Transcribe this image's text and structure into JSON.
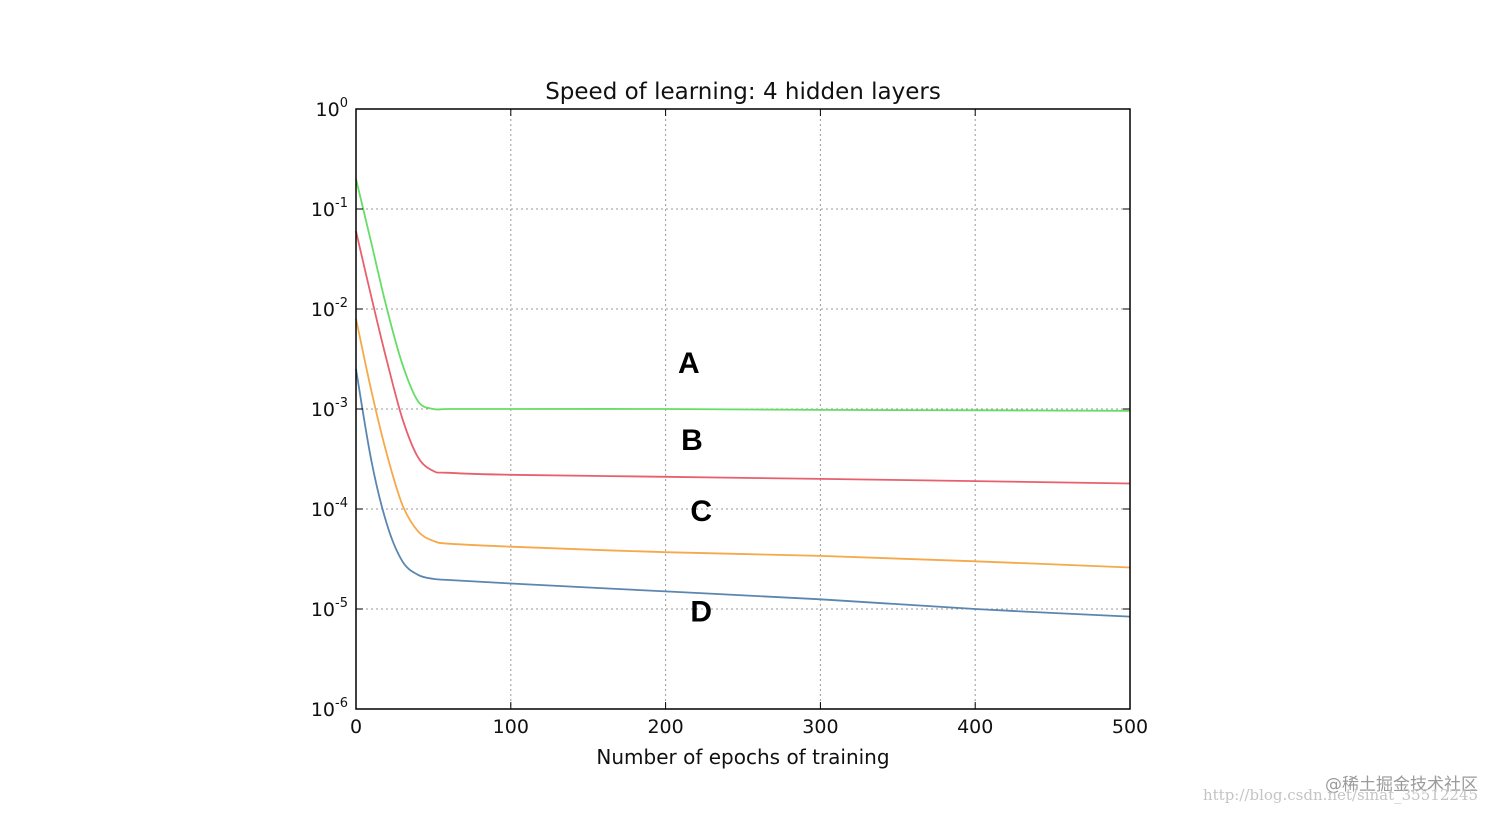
{
  "chart_data": {
    "type": "line",
    "title": "Speed of learning: 4 hidden layers",
    "xlabel": "Number of epochs of training",
    "ylabel": "",
    "xlim": [
      0,
      500
    ],
    "ylim": [
      1e-06,
      1
    ],
    "yscale": "log",
    "grid": true,
    "xticks": [
      "0",
      "100",
      "200",
      "300",
      "400",
      "500"
    ],
    "yticks": [
      {
        "base": "10",
        "exp": "0"
      },
      {
        "base": "10",
        "exp": "-1"
      },
      {
        "base": "10",
        "exp": "-2"
      },
      {
        "base": "10",
        "exp": "-3"
      },
      {
        "base": "10",
        "exp": "-4"
      },
      {
        "base": "10",
        "exp": "-5"
      },
      {
        "base": "10",
        "exp": "-6"
      }
    ],
    "colors": {
      "A": "#66dd66",
      "B": "#e8606c",
      "C": "#f5a94a",
      "D": "#5b86b0"
    },
    "series": [
      {
        "name": "A",
        "x": [
          0,
          10,
          20,
          30,
          40,
          50,
          60,
          100,
          200,
          300,
          400,
          500
        ],
        "y": [
          0.2,
          0.045,
          0.01,
          0.0028,
          0.0012,
          0.001,
          0.001,
          0.001,
          0.001,
          0.00098,
          0.00097,
          0.00096
        ]
      },
      {
        "name": "B",
        "x": [
          0,
          10,
          20,
          30,
          40,
          50,
          60,
          100,
          200,
          300,
          400,
          500
        ],
        "y": [
          0.06,
          0.013,
          0.003,
          0.0008,
          0.00033,
          0.00024,
          0.00023,
          0.00022,
          0.00021,
          0.0002,
          0.00019,
          0.00018
        ]
      },
      {
        "name": "C",
        "x": [
          0,
          10,
          20,
          30,
          40,
          50,
          60,
          100,
          200,
          300,
          400,
          500
        ],
        "y": [
          0.008,
          0.0015,
          0.00035,
          0.00011,
          6e-05,
          4.8e-05,
          4.5e-05,
          4.2e-05,
          3.7e-05,
          3.4e-05,
          3e-05,
          2.6e-05
        ]
      },
      {
        "name": "D",
        "x": [
          0,
          10,
          20,
          30,
          40,
          50,
          60,
          100,
          200,
          300,
          400,
          500
        ],
        "y": [
          0.0025,
          0.0003,
          7e-05,
          3e-05,
          2.2e-05,
          2e-05,
          1.95e-05,
          1.8e-05,
          1.5e-05,
          1.25e-05,
          1e-05,
          8.4e-06
        ]
      }
    ],
    "annotations": [
      {
        "text": "A",
        "x": 215,
        "y": 0.0023
      },
      {
        "text": "B",
        "x": 217,
        "y": 0.00039
      },
      {
        "text": "C",
        "x": 223,
        "y": 7.6e-05
      },
      {
        "text": "D",
        "x": 223,
        "y": 7.5e-06
      }
    ]
  },
  "watermark": {
    "line1": "@稀土掘金技术社区",
    "line2": "http://blog.csdn.net/sinat_35512245"
  }
}
